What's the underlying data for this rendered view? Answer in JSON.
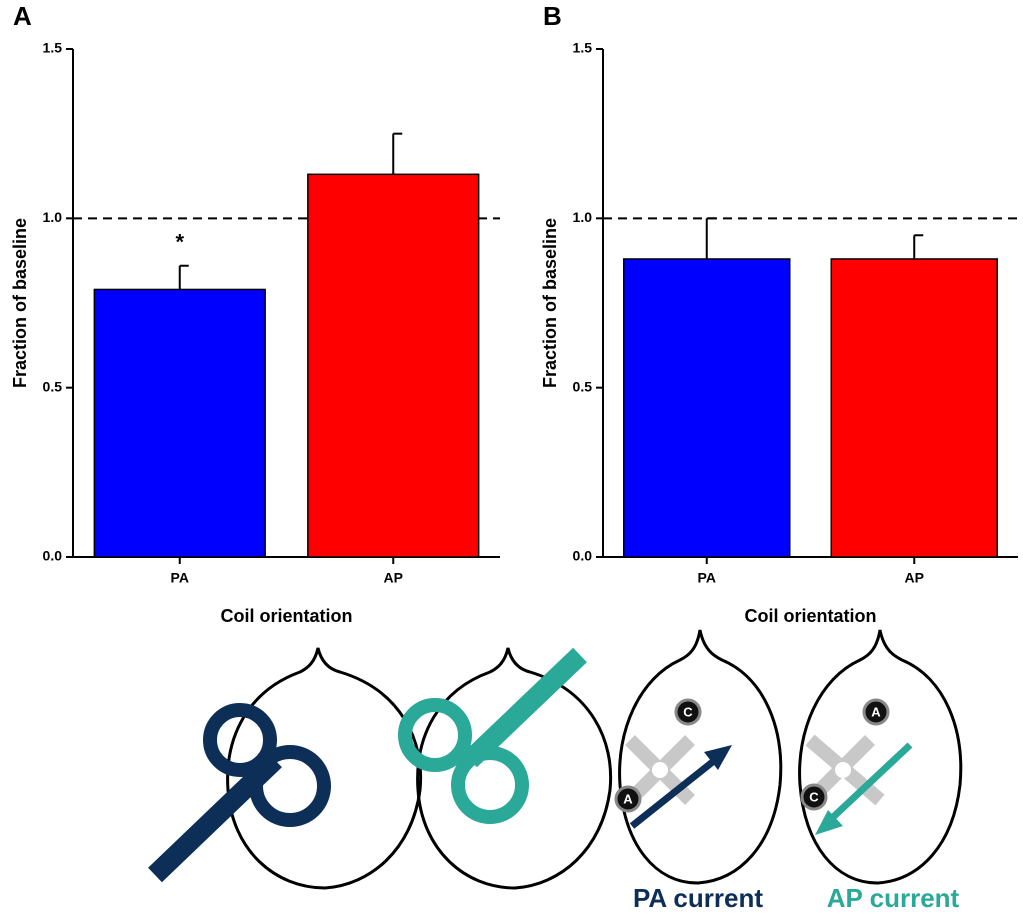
{
  "chart_data": [
    {
      "type": "bar",
      "panel_label": "A",
      "ylabel": "Fraction of baseline",
      "xlabel": "Coil orientation",
      "categories": [
        "PA",
        "AP"
      ],
      "values": [
        0.79,
        1.13
      ],
      "errors": [
        0.07,
        0.12
      ],
      "colors": [
        "#0000ff",
        "#ff0000"
      ],
      "ylim": [
        0,
        1.5
      ],
      "yticks": [
        {
          "value": 0,
          "label": "0.0"
        },
        0.5,
        {
          "value": 1,
          "label": "1.0"
        },
        1.5
      ],
      "reference_line": 1,
      "annotations": [
        {
          "category": 0,
          "text": "*"
        }
      ]
    },
    {
      "type": "bar",
      "panel_label": "B",
      "ylabel": "Fraction of baseline",
      "xlabel": "Coil orientation",
      "categories": [
        "PA",
        "AP"
      ],
      "values": [
        0.88,
        0.88
      ],
      "errors": [
        0.12,
        0.07
      ],
      "colors": [
        "#0000ff",
        "#ff0000"
      ],
      "ylim": [
        0,
        1.5
      ],
      "yticks": [
        {
          "value": 0,
          "label": "0.0"
        },
        0.5,
        {
          "value": 1,
          "label": "1.0"
        },
        1.5
      ],
      "reference_line": 1
    }
  ],
  "diagram": {
    "markers": [
      "C",
      "A",
      "A",
      "C"
    ],
    "labels": [
      "PA current",
      "AP current"
    ]
  }
}
